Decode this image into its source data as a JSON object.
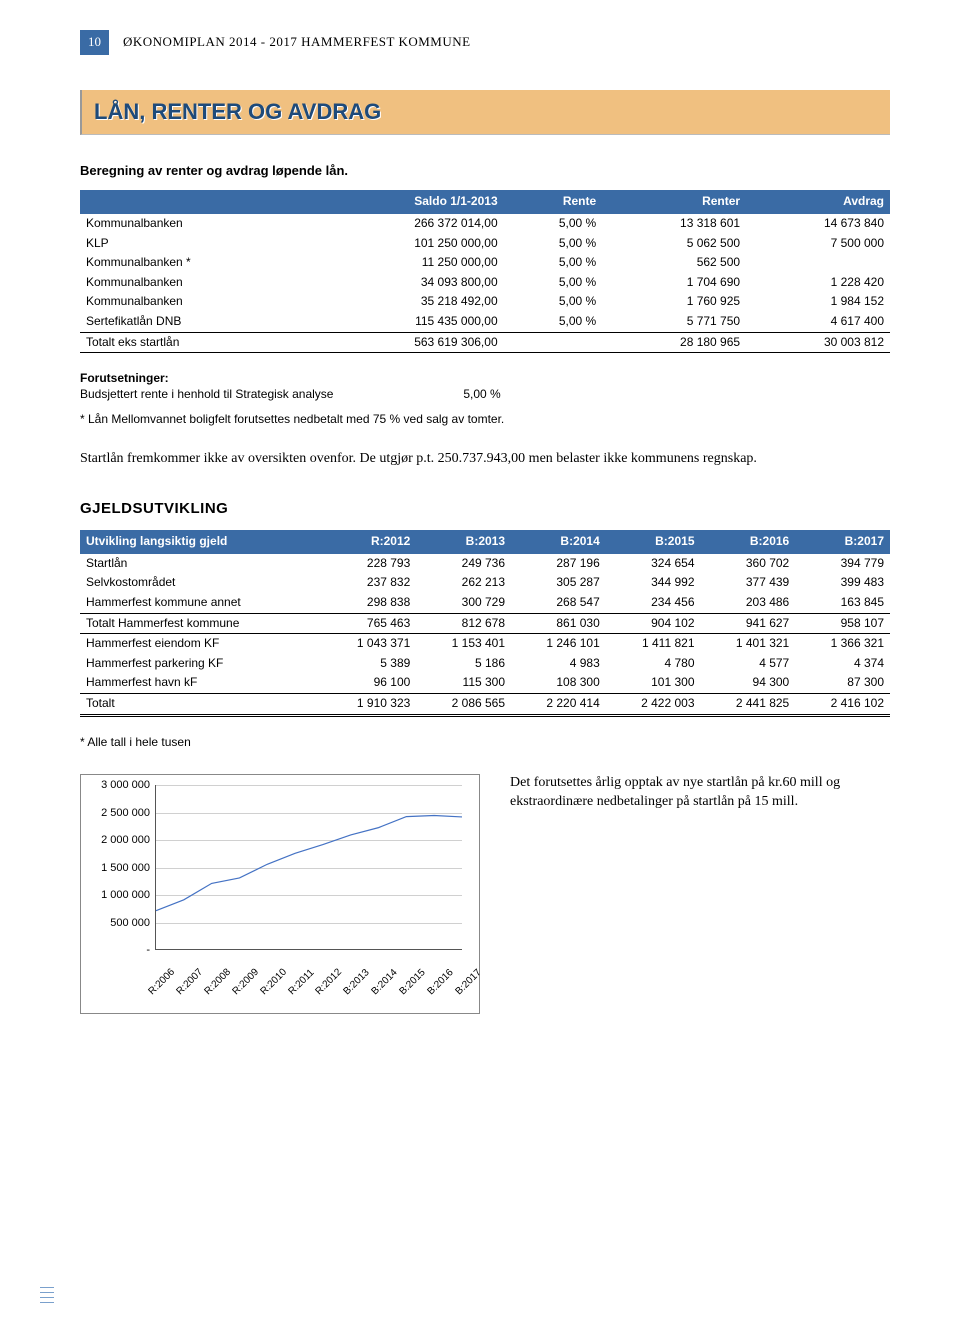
{
  "header": {
    "page_number": "10",
    "doc_title": "ØKONOMIPLAN 2014 - 2017 HAMMERFEST KOMMUNE"
  },
  "section1": {
    "title": "LÅN, RENTER OG AVDRAG",
    "intro": "Beregning av renter og avdrag løpende lån."
  },
  "table1": {
    "header_bg": "#3a6ba5",
    "columns": [
      "",
      "Saldo 1/1-2013",
      "Rente",
      "Renter",
      "Avdrag"
    ],
    "rows": [
      {
        "label": "Kommunalbanken",
        "saldo": "266 372 014,00",
        "rente": "5,00 %",
        "renter": "13 318 601",
        "avdrag": "14 673 840"
      },
      {
        "label": "KLP",
        "saldo": "101 250 000,00",
        "rente": "5,00 %",
        "renter": "5 062 500",
        "avdrag": "7 500 000"
      },
      {
        "label": "Kommunalbanken *",
        "saldo": "11 250 000,00",
        "rente": "5,00 %",
        "renter": "562 500",
        "avdrag": ""
      },
      {
        "label": "Kommunalbanken",
        "saldo": "34 093 800,00",
        "rente": "5,00 %",
        "renter": "1 704 690",
        "avdrag": "1 228 420"
      },
      {
        "label": "Kommunalbanken",
        "saldo": "35 218 492,00",
        "rente": "5,00 %",
        "renter": "1 760 925",
        "avdrag": "1 984 152"
      },
      {
        "label": "Sertefikatlån DNB",
        "saldo": "115 435 000,00",
        "rente": "5,00 %",
        "renter": "5 771 750",
        "avdrag": "4 617 400"
      }
    ],
    "total": {
      "label": "Totalt eks startlån",
      "saldo": "563 619 306,00",
      "rente": "",
      "renter": "28 180 965",
      "avdrag": "30 003 812"
    }
  },
  "assumptions": {
    "heading": "Forutsetninger:",
    "line": "Budsjettert rente i henhold til Strategisk analyse",
    "value": "5,00 %",
    "footnote": "* Lån Mellomvannet boligfelt forutsettes nedbetalt med 75 % ved salg av tomter."
  },
  "paragraph1": "Startlån fremkommer ikke av oversikten ovenfor. De utgjør p.t. 250.737.943,00 men belaster ikke kommunens regnskap.",
  "section2": {
    "heading": "GJELDSUTVIKLING"
  },
  "table2": {
    "header_bg": "#3a6ba5",
    "columns": [
      "Utvikling langsiktig gjeld",
      "R:2012",
      "B:2013",
      "B:2014",
      "B:2015",
      "B:2016",
      "B:2017"
    ],
    "rows1": [
      {
        "c0": "Startlån",
        "c1": "228 793",
        "c2": "249 736",
        "c3": "287 196",
        "c4": "324 654",
        "c5": "360 702",
        "c6": "394 779"
      },
      {
        "c0": "Selvkostområdet",
        "c1": "237 832",
        "c2": "262 213",
        "c3": "305 287",
        "c4": "344 992",
        "c5": "377 439",
        "c6": "399 483"
      },
      {
        "c0": "Hammerfest kommune annet",
        "c1": "298 838",
        "c2": "300 729",
        "c3": "268 547",
        "c4": "234 456",
        "c5": "203 486",
        "c6": "163 845"
      }
    ],
    "subtotal1": {
      "c0": "Totalt Hammerfest kommune",
      "c1": "765 463",
      "c2": "812 678",
      "c3": "861 030",
      "c4": "904 102",
      "c5": "941 627",
      "c6": "958 107"
    },
    "rows2": [
      {
        "c0": "Hammerfest eiendom KF",
        "c1": "1 043 371",
        "c2": "1 153 401",
        "c3": "1 246 101",
        "c4": "1 411 821",
        "c5": "1 401 321",
        "c6": "1 366 321"
      },
      {
        "c0": "Hammerfest parkering KF",
        "c1": "5 389",
        "c2": "5 186",
        "c3": "4 983",
        "c4": "4 780",
        "c5": "4 577",
        "c6": "4 374"
      },
      {
        "c0": "Hammerfest havn kF",
        "c1": "96 100",
        "c2": "115 300",
        "c3": "108 300",
        "c4": "101 300",
        "c5": "94 300",
        "c6": "87 300"
      }
    ],
    "grand": {
      "c0": "Totalt",
      "c1": "1 910 323",
      "c2": "2 086 565",
      "c3": "2 220 414",
      "c4": "2 422 003",
      "c5": "2 441 825",
      "c6": "2 416 102"
    },
    "footnote": "* Alle tall i hele tusen"
  },
  "chart": {
    "type": "line",
    "ylim": [
      0,
      3000000
    ],
    "ytick_step": 500000,
    "y_labels": [
      "3 000 000",
      "2 500 000",
      "2 000 000",
      "1 500 000",
      "1 000 000",
      "500 000",
      "-"
    ],
    "x_labels": [
      "R:2006",
      "R:2007",
      "R:2008",
      "R:2009",
      "R:2010",
      "R:2011",
      "R:2012",
      "B:2013",
      "B:2014",
      "B:2015",
      "B:2016",
      "B:2017"
    ],
    "line_color": "#4472c4",
    "grid_color": "#d0d0d0",
    "background": "#ffffff",
    "values": [
      700000,
      900000,
      1200000,
      1300000,
      1550000,
      1750000,
      1910323,
      2086565,
      2220414,
      2422003,
      2441825,
      2416102
    ]
  },
  "chart_text": "Det forutsettes årlig opptak av nye startlån på kr.60 mill og ekstraordinære nedbetalinger på startlån på 15 mill."
}
